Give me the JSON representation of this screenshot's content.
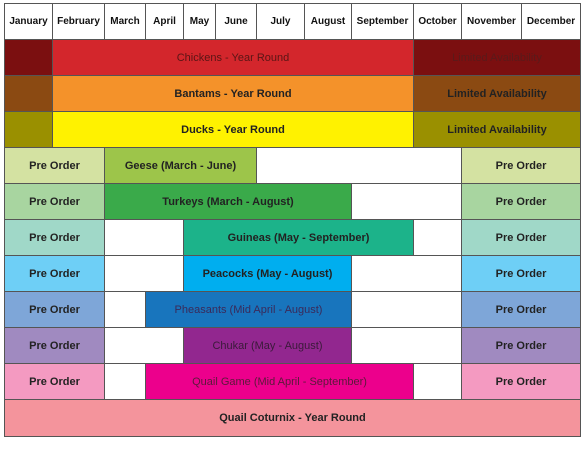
{
  "months": [
    "January",
    "February",
    "March",
    "April",
    "May",
    "June",
    "July",
    "August",
    "September",
    "October",
    "November",
    "December"
  ],
  "rows": [
    [
      "Chickens - Year Round",
      "Limited Availability"
    ],
    [
      "Bantams - Year Round",
      "Limited Availability"
    ],
    [
      "Ducks - Year Round",
      "Limited Availability"
    ],
    [
      "Pre Order",
      "Geese (March - June)",
      "Pre Order"
    ],
    [
      "Pre Order",
      "Turkeys (March - August)",
      "Pre Order"
    ],
    [
      "Pre Order",
      "Guineas (May - September)",
      "Pre Order"
    ],
    [
      "Pre Order",
      "Peacocks (May - August)",
      "Pre Order"
    ],
    [
      "Pre Order",
      "Pheasants (Mid April - August)",
      "Pre Order"
    ],
    [
      "Pre Order",
      "Chukar (May - August)",
      "Pre Order"
    ],
    [
      "Pre Order",
      "Quail Game (Mid April - September)",
      "Pre Order"
    ],
    [
      "Quail Coturnix - Year Round"
    ]
  ]
}
